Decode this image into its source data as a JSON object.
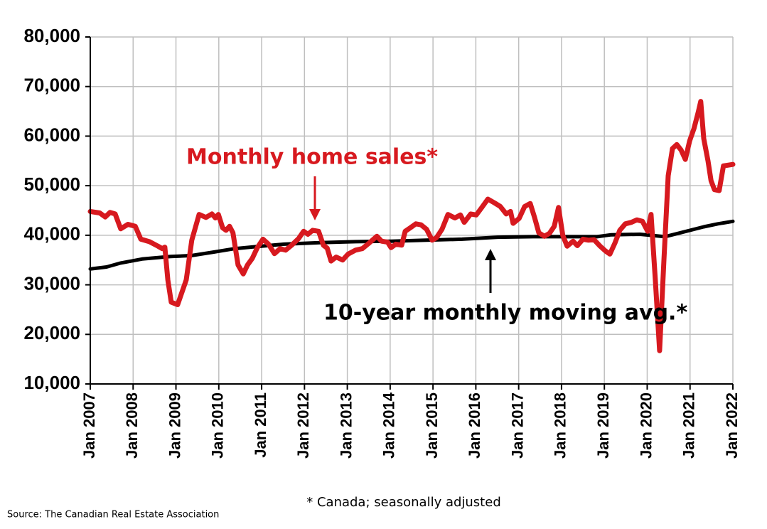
{
  "chart_data": {
    "type": "line",
    "annotations": [
      "Monthly home sales*",
      "10-year monthly moving avg.*"
    ],
    "footnote": "* Canada; seasonally adjusted",
    "source": "Source: The Canadian Real Estate Association",
    "xlim": [
      2007,
      2022
    ],
    "xticks": [
      {
        "value": 2007,
        "label": "Jan 2007"
      },
      {
        "value": 2008,
        "label": "Jan 2008"
      },
      {
        "value": 2009,
        "label": "Jan 2009"
      },
      {
        "value": 2010,
        "label": "Jan 2010"
      },
      {
        "value": 2011,
        "label": "Jan 2011"
      },
      {
        "value": 2012,
        "label": "Jan 2012"
      },
      {
        "value": 2013,
        "label": "Jan 2013"
      },
      {
        "value": 2014,
        "label": "Jan 2014"
      },
      {
        "value": 2015,
        "label": "Jan 2015"
      },
      {
        "value": 2016,
        "label": "Jan 2016"
      },
      {
        "value": 2017,
        "label": "Jan 2017"
      },
      {
        "value": 2018,
        "label": "Jan 2018"
      },
      {
        "value": 2019,
        "label": "Jan 2019"
      },
      {
        "value": 2020,
        "label": "Jan 2020"
      },
      {
        "value": 2021,
        "label": "Jan 2021"
      },
      {
        "value": 2022,
        "label": "Jan 2022"
      }
    ],
    "ylim": [
      10000,
      80000
    ],
    "yticks": [
      {
        "value": 10000,
        "label": "10,000"
      },
      {
        "value": 20000,
        "label": "20,000"
      },
      {
        "value": 30000,
        "label": "30,000"
      },
      {
        "value": 40000,
        "label": "40,000"
      },
      {
        "value": 50000,
        "label": "50,000"
      },
      {
        "value": 60000,
        "label": "60,000"
      },
      {
        "value": 70000,
        "label": "70,000"
      },
      {
        "value": 80000,
        "label": "80,000"
      }
    ],
    "grid": true,
    "series": [
      {
        "name": "Monthly home sales*",
        "color": "#d7191f",
        "x": [
          2007.0,
          2007.22,
          2007.35,
          2007.46,
          2007.58,
          2007.71,
          2007.88,
          2008.05,
          2008.18,
          2008.38,
          2008.58,
          2008.68,
          2008.74,
          2008.81,
          2008.89,
          2009.04,
          2009.24,
          2009.37,
          2009.54,
          2009.7,
          2009.84,
          2009.92,
          2009.99,
          2010.09,
          2010.17,
          2010.25,
          2010.33,
          2010.45,
          2010.57,
          2010.67,
          2010.78,
          2010.9,
          2011.03,
          2011.16,
          2011.3,
          2011.43,
          2011.56,
          2011.7,
          2011.86,
          2011.98,
          2012.08,
          2012.19,
          2012.33,
          2012.44,
          2012.53,
          2012.62,
          2012.74,
          2012.89,
          2013.02,
          2013.19,
          2013.35,
          2013.52,
          2013.69,
          2013.8,
          2013.94,
          2014.02,
          2014.13,
          2014.27,
          2014.35,
          2014.47,
          2014.6,
          2014.72,
          2014.85,
          2014.98,
          2015.08,
          2015.21,
          2015.35,
          2015.51,
          2015.64,
          2015.73,
          2015.88,
          2016.01,
          2016.14,
          2016.28,
          2016.44,
          2016.57,
          2016.71,
          2016.81,
          2016.87,
          2017.01,
          2017.14,
          2017.27,
          2017.37,
          2017.47,
          2017.6,
          2017.72,
          2017.83,
          2017.93,
          2018.03,
          2018.13,
          2018.27,
          2018.37,
          2018.5,
          2018.63,
          2018.76,
          2018.9,
          2019.03,
          2019.13,
          2019.25,
          2019.36,
          2019.49,
          2019.63,
          2019.76,
          2019.89,
          2020.01,
          2020.09,
          2020.19,
          2020.29,
          2020.39,
          2020.49,
          2020.59,
          2020.69,
          2020.79,
          2020.89,
          2020.99,
          2021.09,
          2021.19,
          2021.25,
          2021.32,
          2021.42,
          2021.49,
          2021.57,
          2021.68,
          2021.78,
          2022.0
        ],
        "values": [
          44800,
          44500,
          43700,
          44600,
          44300,
          41300,
          42200,
          41800,
          39200,
          38700,
          37800,
          37300,
          37600,
          31000,
          26500,
          26000,
          31000,
          39000,
          44200,
          43600,
          44300,
          43500,
          44200,
          41500,
          41000,
          41800,
          40500,
          34000,
          32200,
          34000,
          35300,
          37500,
          39200,
          38200,
          36300,
          37300,
          37000,
          38000,
          39300,
          40800,
          40200,
          41000,
          40800,
          38000,
          37400,
          34800,
          35600,
          35000,
          36200,
          37000,
          37300,
          38500,
          39800,
          38800,
          38600,
          37500,
          38200,
          38000,
          40800,
          41500,
          42300,
          42100,
          41200,
          39000,
          39500,
          41200,
          44200,
          43500,
          44100,
          42600,
          44300,
          44100,
          45600,
          47300,
          46500,
          45800,
          44300,
          44800,
          42400,
          43400,
          45800,
          46400,
          43600,
          40500,
          39800,
          40400,
          41800,
          45600,
          40000,
          37800,
          38800,
          37900,
          39200,
          39000,
          39100,
          37800,
          36800,
          36200,
          38500,
          41000,
          42300,
          42600,
          43100,
          42800,
          40800,
          44200,
          31000,
          16700,
          35000,
          52000,
          57500,
          58300,
          57200,
          55300,
          59000,
          61500,
          64800,
          67000,
          59500,
          55000,
          51000,
          49200,
          49000,
          54000,
          54300
        ]
      },
      {
        "name": "10-year monthly moving avg.*",
        "color": "#000000",
        "x": [
          2007.0,
          2007.38,
          2007.71,
          2008.21,
          2008.87,
          2009.37,
          2009.87,
          2010.37,
          2010.87,
          2011.53,
          2012.36,
          2013.19,
          2014.02,
          2014.85,
          2015.68,
          2016.51,
          2017.34,
          2018.17,
          2018.83,
          2019.16,
          2019.83,
          2020.08,
          2020.41,
          2020.82,
          2021.32,
          2021.65,
          2022.0
        ],
        "values": [
          33200,
          33600,
          34400,
          35200,
          35700,
          35900,
          36600,
          37300,
          37700,
          38200,
          38500,
          38700,
          38800,
          39000,
          39200,
          39600,
          39700,
          39700,
          39700,
          40100,
          40200,
          40000,
          39700,
          40600,
          41700,
          42300,
          42800
        ]
      }
    ]
  }
}
